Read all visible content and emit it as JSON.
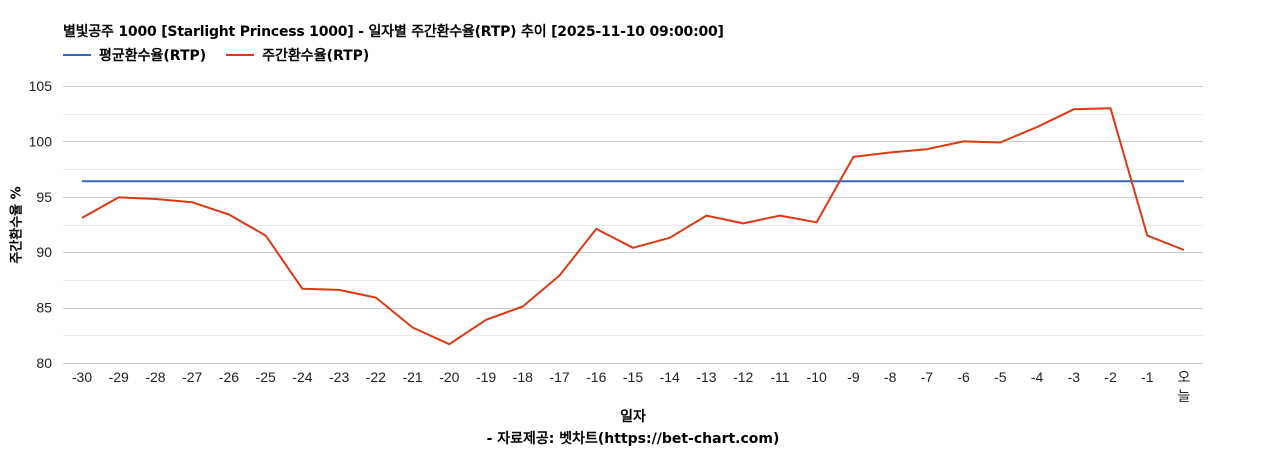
{
  "chart": {
    "title": "별빛공주 1000 [Starlight Princess 1000] - 일자별 주간환수율(RTP) 추이 [2025-11-10 09:00:00]",
    "legend": [
      {
        "label": "평균환수율(RTP)",
        "color": "#3366cc"
      },
      {
        "label": "주간환수율(RTP)",
        "color": "#dc3912"
      }
    ],
    "y_axis_label": "주간환수율 %",
    "x_axis_label": "일자",
    "source": "- 자료제공: 벳차트(https://bet-chart.com)"
  },
  "chart_data": {
    "type": "line",
    "title": "별빛공주 1000 [Starlight Princess 1000] - 일자별 주간환수율(RTP) 추이 [2025-11-10 09:00:00]",
    "xlabel": "일자",
    "ylabel": "주간환수율 %",
    "ylim": [
      80,
      105
    ],
    "yticks": [
      80,
      85,
      90,
      95,
      100,
      105
    ],
    "grid": true,
    "legend_position": "top",
    "categories": [
      "-30",
      "-29",
      "-28",
      "-27",
      "-26",
      "-25",
      "-24",
      "-23",
      "-22",
      "-21",
      "-20",
      "-19",
      "-18",
      "-17",
      "-16",
      "-15",
      "-14",
      "-13",
      "-12",
      "-11",
      "-10",
      "-9",
      "-8",
      "-7",
      "-6",
      "-5",
      "-4",
      "-3",
      "-2",
      "-1",
      "오늘"
    ],
    "series": [
      {
        "name": "평균환수율(RTP)",
        "color": "#3366cc",
        "values": [
          96.4,
          96.4,
          96.4,
          96.4,
          96.4,
          96.4,
          96.4,
          96.4,
          96.4,
          96.4,
          96.4,
          96.4,
          96.4,
          96.4,
          96.4,
          96.4,
          96.4,
          96.4,
          96.4,
          96.4,
          96.4,
          96.4,
          96.4,
          96.4,
          96.4,
          96.4,
          96.4,
          96.4,
          96.4,
          96.4,
          96.4
        ]
      },
      {
        "name": "주간환수율(RTP)",
        "color": "#dc3912",
        "values": [
          93.1,
          94.95,
          94.8,
          94.5,
          93.4,
          91.5,
          86.7,
          86.6,
          85.9,
          83.2,
          81.7,
          83.9,
          85.1,
          87.9,
          92.1,
          90.4,
          91.3,
          93.3,
          92.6,
          93.3,
          92.7,
          98.6,
          99.0,
          99.3,
          100.0,
          99.9,
          101.3,
          102.9,
          103.0,
          91.5,
          90.2
        ]
      }
    ]
  }
}
